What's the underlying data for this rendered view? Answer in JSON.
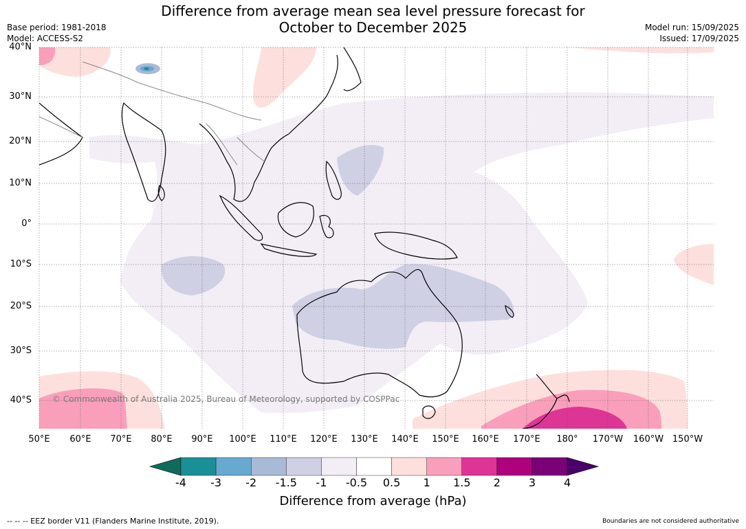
{
  "header": {
    "title_line1": "Difference from average mean sea level pressure forecast for",
    "title_line2": "October to December 2025",
    "base_period": "Base period: 1981-2018",
    "model": "Model: ACCESS-S2",
    "model_run": "Model run: 15/09/2025",
    "issued": "Issued: 17/09/2025"
  },
  "map": {
    "lat_labels": [
      "40°N",
      "30°N",
      "20°N",
      "10°N",
      "0°",
      "10°S",
      "20°S",
      "30°S",
      "40°S"
    ],
    "lon_labels": [
      "50°E",
      "60°E",
      "70°E",
      "80°E",
      "90°E",
      "100°E",
      "110°E",
      "120°E",
      "130°E",
      "140°E",
      "150°E",
      "160°E",
      "170°E",
      "180°",
      "170°W",
      "160°W",
      "150°W"
    ],
    "copyright": "© Commonwealth of Australia 2025, Bureau of Meteorology, supported by COSPPac",
    "colors": {
      "ocean": "#ffffff",
      "land_outline": "#000000",
      "border_outline": "#888888",
      "band_-4": "#0f6b5c",
      "band_-3": "#1b8f96",
      "band_-2": "#68a9cf",
      "band_-1.5": "#a9bad6",
      "band_-1": "#d0d0e5",
      "band_-0.5": "#f3eef6",
      "band_0.5": "#ffffff",
      "band_1": "#fde0dd",
      "band_1.5": "#f99fbb",
      "band_2": "#dd3596",
      "band_3": "#ae017e",
      "band_4": "#7a0177",
      "over": "#49006a"
    }
  },
  "colorbar": {
    "ticks": [
      "-4",
      "-3",
      "-2",
      "-1.5",
      "-1",
      "-0.5",
      "0.5",
      "1",
      "1.5",
      "2",
      "3",
      "4"
    ],
    "label": "Difference from average (hPa)"
  },
  "footer": {
    "eez": "--  --  -- EEZ border V11 (Flanders Marine Institute, 2019).",
    "disclaimer": "Boundaries are not considered authoritative"
  }
}
